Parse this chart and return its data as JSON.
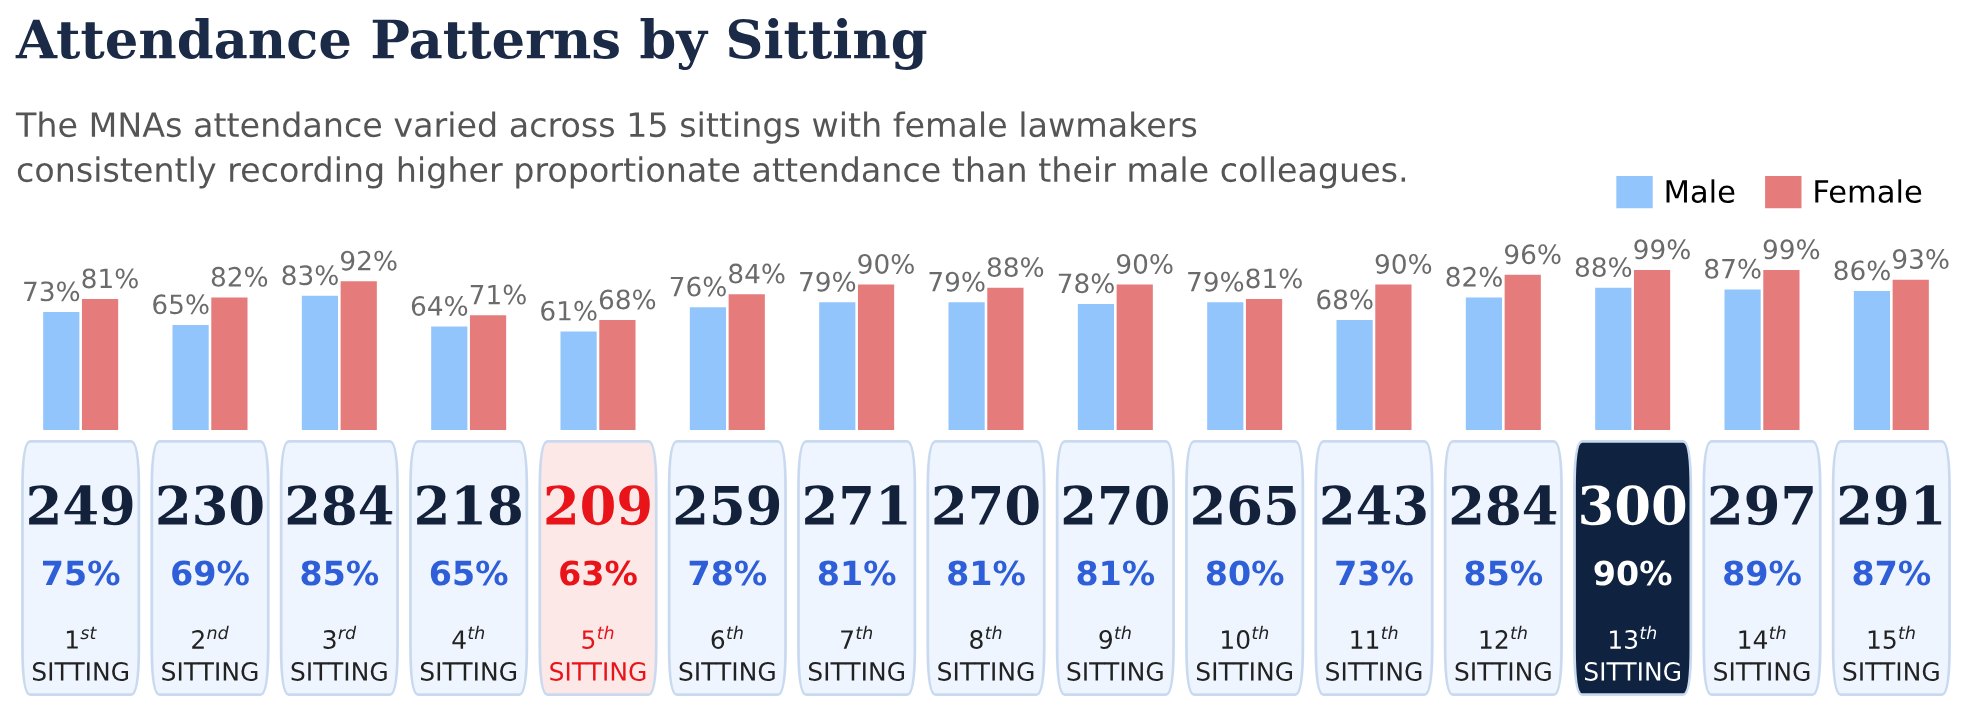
{
  "chart_data": [
    {
      "type": "bar",
      "title": "Attendance Patterns by Sitting",
      "subtitle": "The MNAs attendance varied across 15 sittings with female lawmakers\nconsistently recording higher proportionate attendance than their male colleagues.",
      "categories": [
        null,
        null,
        null,
        null,
        null,
        null,
        null,
        null,
        null,
        null,
        null,
        null,
        null,
        null,
        null
      ],
      "series": [
        {
          "name": "Male",
          "color": "#93c5fd",
          "values": [
            73,
            65,
            83,
            64,
            61,
            76,
            79,
            79,
            78,
            79,
            68,
            82,
            88,
            87,
            86
          ],
          "value_labels": [
            "73%",
            "65%",
            "83%",
            "64%",
            "61%",
            "76%",
            "79%",
            "79%",
            "78%",
            "79%",
            "68%",
            "82%",
            "88%",
            "87%",
            "86%"
          ]
        },
        {
          "name": "Female",
          "color": "#e57b7b",
          "values": [
            81,
            82,
            92,
            71,
            68,
            84,
            90,
            88,
            90,
            81,
            90,
            96,
            99,
            99,
            93
          ],
          "value_labels": [
            "81%",
            "82%",
            "92%",
            "71%",
            "68%",
            "84%",
            "90%",
            "88%",
            "90%",
            "81%",
            "90%",
            "96%",
            "99%",
            "99%",
            "93%"
          ]
        }
      ],
      "legend": "top right",
      "tick_labels": false
    },
    {
      "type": "other",
      "categories": [
        "1$^{st}$\nSITTING",
        "2$^{nd}$\nSITTING",
        "3$^{rd}$\nSITTING",
        "4$^{th}$\nSITTING",
        "5$^{th}$\nSITTING",
        "6$^{th}$\nSITTING",
        "7$^{th}$\nSITTING",
        "8$^{th}$\nSITTING",
        "9$^{th}$\nSITTING",
        "10$^{th}$\nSITTING",
        "11$^{th}$\nSITTING",
        "12$^{th}$\nSITTING",
        "13$^{th}$\nSITTING",
        "14$^{th}$\nSITTING",
        "15$^{th}$\nSITTING"
      ],
      "colors": [
        "#eef5fe",
        "#eef5fe",
        "#eef5fe",
        "#eef5fe",
        "#fde8e8",
        "#eef5fe",
        "#eef5fe",
        "#eef5fe",
        "#eef5fe",
        "#eef5fe",
        "#eef5fe",
        "#eef5fe",
        "#0f2340",
        "#eef5fe",
        "#eef5fe"
      ],
      "annotations": [
        "249",
        "75%",
        "230",
        "69%",
        "284",
        "85%",
        "218",
        "65%",
        "209",
        "63%",
        "259",
        "78%",
        "271",
        "81%",
        "270",
        "81%",
        "270",
        "81%",
        "265",
        "80%",
        "243",
        "73%",
        "284",
        "85%",
        "300",
        "90%",
        "297",
        "89%",
        "291",
        "87%"
      ]
    }
  ]
}
